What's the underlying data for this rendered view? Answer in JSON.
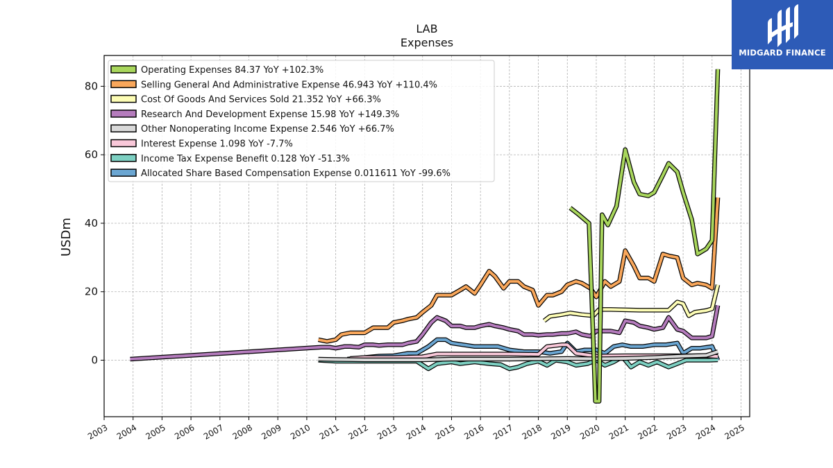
{
  "logo": {
    "text": "MIDGARD FINANCE",
    "background": "#2d5bb7"
  },
  "chart_data": {
    "type": "line",
    "title": "LAB",
    "subtitle": "Expenses",
    "xlabel": "",
    "ylabel": "USDm",
    "xlim": [
      2003.0,
      2025.3
    ],
    "ylim": [
      -16.5,
      89
    ],
    "x_ticks": [
      "2003",
      "2004",
      "2005",
      "2006",
      "2007",
      "2008",
      "2009",
      "2010",
      "2011",
      "2012",
      "2013",
      "2014",
      "2015",
      "2016",
      "2017",
      "2018",
      "2019",
      "2020",
      "2021",
      "2022",
      "2023",
      "2024",
      "2025"
    ],
    "y_ticks": [
      0,
      20,
      40,
      60,
      80
    ],
    "grid": true,
    "legend_position": "top-left",
    "series": [
      {
        "name": "Operating Expenses",
        "legend": "Operating Expenses  84.37 YoY +102.3%",
        "color": "#a8d65c",
        "points": [
          [
            2019.1,
            44.5
          ],
          [
            2019.4,
            42.5
          ],
          [
            2019.75,
            40
          ],
          [
            2019.9,
            5
          ],
          [
            2019.97,
            -12
          ],
          [
            2020.1,
            -12
          ],
          [
            2020.2,
            42.5
          ],
          [
            2020.4,
            39.5
          ],
          [
            2020.7,
            45
          ],
          [
            2021.0,
            61.5
          ],
          [
            2021.3,
            52
          ],
          [
            2021.5,
            48.5
          ],
          [
            2021.8,
            48
          ],
          [
            2022.0,
            49
          ],
          [
            2022.3,
            54
          ],
          [
            2022.5,
            57.5
          ],
          [
            2022.8,
            55
          ],
          [
            2023.0,
            49
          ],
          [
            2023.3,
            41
          ],
          [
            2023.5,
            31
          ],
          [
            2023.8,
            32.5
          ],
          [
            2024.0,
            35
          ],
          [
            2024.2,
            85
          ]
        ]
      },
      {
        "name": "Selling General And Administrative Expense",
        "legend": "Selling General And Administrative Expense  46.943 YoY +110.4%",
        "color": "#f9a75b",
        "points": [
          [
            2010.4,
            6
          ],
          [
            2010.7,
            5.5
          ],
          [
            2011.0,
            6
          ],
          [
            2011.2,
            7.5
          ],
          [
            2011.5,
            8
          ],
          [
            2011.8,
            8
          ],
          [
            2012.0,
            8
          ],
          [
            2012.3,
            9.5
          ],
          [
            2012.5,
            9.5
          ],
          [
            2012.8,
            9.5
          ],
          [
            2013.0,
            11
          ],
          [
            2013.3,
            11.5
          ],
          [
            2013.5,
            12
          ],
          [
            2013.8,
            12.5
          ],
          [
            2014.0,
            14
          ],
          [
            2014.3,
            16
          ],
          [
            2014.5,
            19
          ],
          [
            2014.8,
            19
          ],
          [
            2015.0,
            19
          ],
          [
            2015.3,
            20.5
          ],
          [
            2015.5,
            21.5
          ],
          [
            2015.8,
            19.5
          ],
          [
            2016.0,
            22
          ],
          [
            2016.3,
            26
          ],
          [
            2016.5,
            24.5
          ],
          [
            2016.8,
            21
          ],
          [
            2017.0,
            23
          ],
          [
            2017.3,
            23
          ],
          [
            2017.5,
            21.5
          ],
          [
            2017.8,
            20.5
          ],
          [
            2018.0,
            16
          ],
          [
            2018.3,
            19
          ],
          [
            2018.5,
            19
          ],
          [
            2018.8,
            20
          ],
          [
            2019.0,
            22
          ],
          [
            2019.3,
            23
          ],
          [
            2019.5,
            22.5
          ],
          [
            2019.8,
            21
          ],
          [
            2020.0,
            18.5
          ],
          [
            2020.3,
            23
          ],
          [
            2020.5,
            21.5
          ],
          [
            2020.8,
            23
          ],
          [
            2021.0,
            32
          ],
          [
            2021.3,
            27.5
          ],
          [
            2021.5,
            24
          ],
          [
            2021.8,
            24
          ],
          [
            2022.0,
            23
          ],
          [
            2022.3,
            31
          ],
          [
            2022.5,
            30.5
          ],
          [
            2022.8,
            30
          ],
          [
            2023.0,
            24
          ],
          [
            2023.3,
            22
          ],
          [
            2023.5,
            22.5
          ],
          [
            2023.8,
            22
          ],
          [
            2024.0,
            21
          ],
          [
            2024.2,
            47.5
          ]
        ]
      },
      {
        "name": "Cost Of Goods And Services Sold",
        "legend": "Cost Of Goods And Services Sold  21.352 YoY +66.3%",
        "color": "#fdfdb5",
        "points": [
          [
            2018.2,
            11.5
          ],
          [
            2018.4,
            12.8
          ],
          [
            2018.8,
            13.3
          ],
          [
            2019.1,
            13.8
          ],
          [
            2019.5,
            13.3
          ],
          [
            2019.9,
            13
          ],
          [
            2020.1,
            14.8
          ],
          [
            2020.5,
            14.8
          ],
          [
            2021.0,
            14.7
          ],
          [
            2021.5,
            14.6
          ],
          [
            2022.0,
            14.6
          ],
          [
            2022.5,
            14.6
          ],
          [
            2022.8,
            17
          ],
          [
            2023.0,
            16.5
          ],
          [
            2023.2,
            13
          ],
          [
            2023.4,
            14
          ],
          [
            2023.8,
            14.5
          ],
          [
            2024.0,
            15
          ],
          [
            2024.2,
            22
          ]
        ]
      },
      {
        "name": "Research And Development Expense",
        "legend": "Research And Development Expense  15.98 YoY +149.3%",
        "color": "#b57cbd",
        "points": [
          [
            2003.9,
            0.3
          ],
          [
            2010.5,
            3.8
          ],
          [
            2010.8,
            3.8
          ],
          [
            2011.0,
            3.5
          ],
          [
            2011.3,
            4
          ],
          [
            2011.5,
            4
          ],
          [
            2011.8,
            3.8
          ],
          [
            2012.0,
            4.5
          ],
          [
            2012.3,
            4.5
          ],
          [
            2012.5,
            4.3
          ],
          [
            2012.8,
            4.5
          ],
          [
            2013.0,
            4.5
          ],
          [
            2013.3,
            4.5
          ],
          [
            2013.5,
            5
          ],
          [
            2013.8,
            5.5
          ],
          [
            2014.0,
            7.5
          ],
          [
            2014.3,
            11
          ],
          [
            2014.5,
            12.5
          ],
          [
            2014.8,
            11.5
          ],
          [
            2015.0,
            10
          ],
          [
            2015.3,
            10
          ],
          [
            2015.5,
            9.5
          ],
          [
            2015.8,
            9.5
          ],
          [
            2016.0,
            10
          ],
          [
            2016.3,
            10.5
          ],
          [
            2016.5,
            10
          ],
          [
            2016.8,
            9.5
          ],
          [
            2017.0,
            9
          ],
          [
            2017.3,
            8.5
          ],
          [
            2017.5,
            7.5
          ],
          [
            2017.8,
            7.5
          ],
          [
            2018.0,
            7.3
          ],
          [
            2018.3,
            7.5
          ],
          [
            2018.5,
            7.5
          ],
          [
            2018.8,
            7.8
          ],
          [
            2019.0,
            7.8
          ],
          [
            2019.3,
            8.3
          ],
          [
            2019.5,
            7.5
          ],
          [
            2019.8,
            7
          ],
          [
            2020.0,
            8.5
          ],
          [
            2020.3,
            8.5
          ],
          [
            2020.5,
            8.5
          ],
          [
            2020.8,
            8
          ],
          [
            2021.0,
            11.5
          ],
          [
            2021.3,
            11
          ],
          [
            2021.5,
            10
          ],
          [
            2021.8,
            9.5
          ],
          [
            2022.0,
            9
          ],
          [
            2022.3,
            9.5
          ],
          [
            2022.5,
            12.5
          ],
          [
            2022.8,
            9
          ],
          [
            2023.0,
            8.5
          ],
          [
            2023.3,
            6.5
          ],
          [
            2023.5,
            6.5
          ],
          [
            2023.8,
            6.5
          ],
          [
            2024.0,
            7
          ],
          [
            2024.2,
            16
          ]
        ]
      },
      {
        "name": "Other Nonoperating Income Expense",
        "legend": "Other Nonoperating Income Expense  2.546 YoY +66.7%",
        "color": "#d9d9d9",
        "points": [
          [
            2010.4,
            0.3
          ],
          [
            2011.0,
            0.2
          ],
          [
            2012.0,
            0.1
          ],
          [
            2013.0,
            0.1
          ],
          [
            2014.0,
            0.1
          ],
          [
            2015.0,
            0.3
          ],
          [
            2016.0,
            0.3
          ],
          [
            2017.0,
            0.3
          ],
          [
            2018.0,
            0.4
          ],
          [
            2019.0,
            0.5
          ],
          [
            2020.0,
            0.4
          ],
          [
            2021.0,
            0.5
          ],
          [
            2022.0,
            0.8
          ],
          [
            2023.0,
            1.2
          ],
          [
            2023.8,
            1.4
          ],
          [
            2024.2,
            2.5
          ]
        ]
      },
      {
        "name": "Interest Expense",
        "legend": "Interest Expense  1.098 YoY -7.7%",
        "color": "#f9c8d9",
        "points": [
          [
            2011.5,
            0.5
          ],
          [
            2012.0,
            0.8
          ],
          [
            2013.0,
            0.8
          ],
          [
            2014.0,
            1
          ],
          [
            2014.5,
            1.8
          ],
          [
            2015.0,
            1.8
          ],
          [
            2016.0,
            1.8
          ],
          [
            2017.0,
            1.8
          ],
          [
            2018.0,
            1.7
          ],
          [
            2018.3,
            4
          ],
          [
            2018.8,
            4.5
          ],
          [
            2019.0,
            4.5
          ],
          [
            2019.3,
            2
          ],
          [
            2020.0,
            1.2
          ],
          [
            2021.0,
            1.3
          ],
          [
            2022.0,
            1.3
          ],
          [
            2023.0,
            1.3
          ],
          [
            2023.8,
            1.3
          ],
          [
            2024.2,
            1.1
          ]
        ]
      },
      {
        "name": "Income Tax Expense Benefit",
        "legend": "Income Tax Expense Benefit  0.128 YoY -51.3%",
        "color": "#7dd0c2",
        "points": [
          [
            2010.4,
            0
          ],
          [
            2011.0,
            -0.3
          ],
          [
            2012.0,
            -0.3
          ],
          [
            2013.0,
            -0.3
          ],
          [
            2013.8,
            -0.3
          ],
          [
            2014.2,
            -2.5
          ],
          [
            2014.5,
            -1
          ],
          [
            2015.0,
            -0.5
          ],
          [
            2015.3,
            -1
          ],
          [
            2015.8,
            -0.5
          ],
          [
            2016.3,
            -1
          ],
          [
            2016.7,
            -1.3
          ],
          [
            2017.0,
            -2.5
          ],
          [
            2017.3,
            -2
          ],
          [
            2017.6,
            -1
          ],
          [
            2018.0,
            -0.3
          ],
          [
            2018.3,
            -1.5
          ],
          [
            2018.6,
            0
          ],
          [
            2019.0,
            -0.5
          ],
          [
            2019.3,
            -1.5
          ],
          [
            2019.7,
            -1
          ],
          [
            2020.0,
            0
          ],
          [
            2020.3,
            -1.5
          ],
          [
            2020.6,
            -0.5
          ],
          [
            2020.9,
            1
          ],
          [
            2021.2,
            -2
          ],
          [
            2021.5,
            -0.5
          ],
          [
            2021.8,
            -1.5
          ],
          [
            2022.1,
            -0.5
          ],
          [
            2022.5,
            -2
          ],
          [
            2022.8,
            -1
          ],
          [
            2023.1,
            0
          ],
          [
            2023.5,
            0
          ],
          [
            2023.9,
            0
          ],
          [
            2024.2,
            0.1
          ]
        ]
      },
      {
        "name": "Allocated Share Based Compensation Expense",
        "legend": "Allocated Share Based Compensation Expense  0.011611 YoY -99.6%",
        "color": "#6ba6d2",
        "points": [
          [
            2011.4,
            0.3
          ],
          [
            2012.0,
            0.8
          ],
          [
            2012.5,
            1.2
          ],
          [
            2013.0,
            1.3
          ],
          [
            2013.5,
            2
          ],
          [
            2013.8,
            2
          ],
          [
            2014.2,
            4
          ],
          [
            2014.5,
            6
          ],
          [
            2014.8,
            6
          ],
          [
            2015.0,
            5
          ],
          [
            2015.4,
            4.5
          ],
          [
            2015.8,
            4
          ],
          [
            2016.2,
            4
          ],
          [
            2016.6,
            4
          ],
          [
            2017.0,
            3
          ],
          [
            2017.5,
            2.5
          ],
          [
            2018.0,
            2.5
          ],
          [
            2018.4,
            2
          ],
          [
            2018.8,
            2.5
          ],
          [
            2019.0,
            5
          ],
          [
            2019.3,
            2.5
          ],
          [
            2019.6,
            3
          ],
          [
            2020.0,
            3
          ],
          [
            2020.3,
            2
          ],
          [
            2020.6,
            4
          ],
          [
            2020.9,
            4.5
          ],
          [
            2021.2,
            4
          ],
          [
            2021.6,
            4
          ],
          [
            2022.0,
            4.5
          ],
          [
            2022.4,
            4.5
          ],
          [
            2022.8,
            5
          ],
          [
            2023.0,
            2
          ],
          [
            2023.3,
            3.5
          ],
          [
            2023.6,
            3.5
          ],
          [
            2024.0,
            4
          ],
          [
            2024.2,
            0
          ]
        ]
      }
    ]
  }
}
